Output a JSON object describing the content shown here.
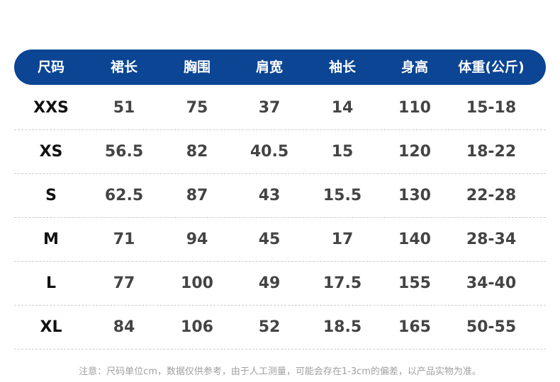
{
  "table": {
    "header": [
      "尺码",
      "裙长",
      "胸围",
      "肩宽",
      "袖长",
      "身高",
      "体重(公斤)"
    ],
    "rows": [
      [
        "XXS",
        "51",
        "75",
        "37",
        "14",
        "110",
        "15-18"
      ],
      [
        "XS",
        "56.5",
        "82",
        "40.5",
        "15",
        "120",
        "18-22"
      ],
      [
        "S",
        "62.5",
        "87",
        "43",
        "15.5",
        "130",
        "22-28"
      ],
      [
        "M",
        "71",
        "94",
        "45",
        "17",
        "140",
        "28-34"
      ],
      [
        "L",
        "77",
        "100",
        "49",
        "17.5",
        "155",
        "34-40"
      ],
      [
        "XL",
        "84",
        "106",
        "52",
        "18.5",
        "165",
        "50-55"
      ]
    ]
  },
  "footnote": "注意：尺码单位cm，数据仅供参考，由于人工测量，可能会存在1-3cm的偏差，以产品实物为准。"
}
